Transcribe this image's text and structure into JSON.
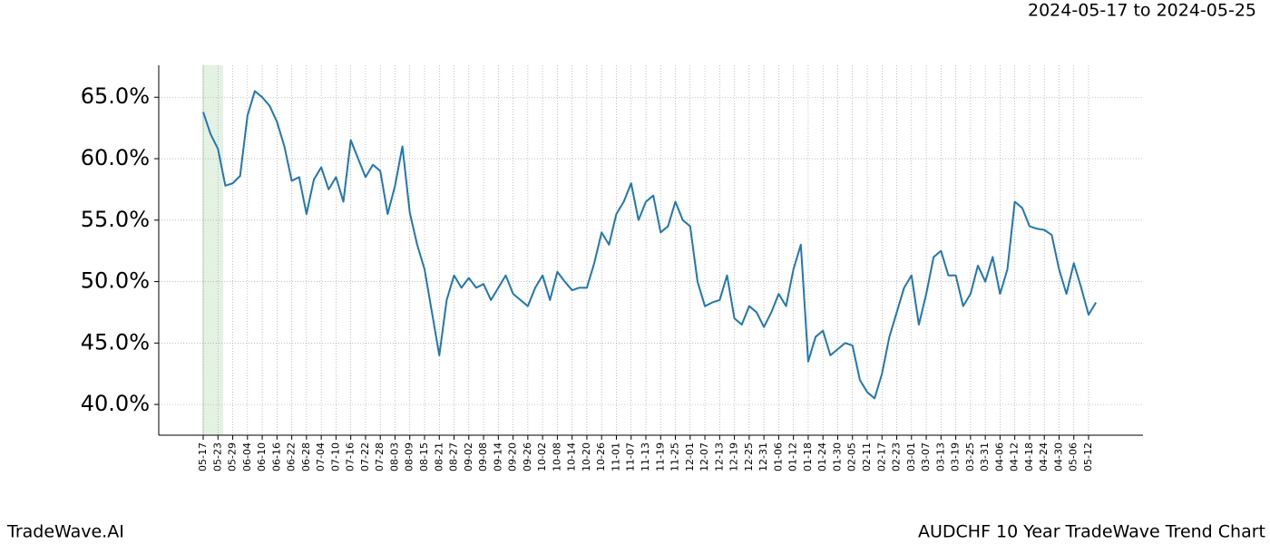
{
  "header": {
    "date_range": "2024-05-17 to 2024-05-25"
  },
  "footer": {
    "brand": "TradeWave.AI",
    "caption": "AUDCHF 10 Year TradeWave Trend Chart"
  },
  "chart_data": {
    "type": "line",
    "categories": [
      "05-17",
      null,
      "05-23",
      null,
      "05-29",
      null,
      "06-04",
      null,
      "06-10",
      null,
      "06-16",
      null,
      "06-22",
      null,
      "06-28",
      null,
      "07-04",
      null,
      "07-10",
      null,
      "07-16",
      null,
      "07-22",
      null,
      "07-28",
      null,
      "08-03",
      null,
      "08-09",
      null,
      "08-15",
      null,
      "08-21",
      null,
      "08-27",
      null,
      "09-02",
      null,
      "09-08",
      null,
      "09-14",
      null,
      "09-20",
      null,
      "09-26",
      null,
      "10-02",
      null,
      "10-08",
      null,
      "10-14",
      null,
      "10-20",
      null,
      "10-26",
      null,
      "11-01",
      null,
      "11-07",
      null,
      "11-13",
      null,
      "11-19",
      null,
      "11-25",
      null,
      "12-01",
      null,
      "12-07",
      null,
      "12-13",
      null,
      "12-19",
      null,
      "12-25",
      null,
      "12-31",
      null,
      "01-06",
      null,
      "01-12",
      null,
      "01-18",
      null,
      "01-24",
      null,
      "01-30",
      null,
      "02-05",
      null,
      "02-11",
      null,
      "02-17",
      null,
      "02-23",
      null,
      "03-01",
      null,
      "03-07",
      null,
      "03-13",
      null,
      "03-19",
      null,
      "03-25",
      null,
      "03-31",
      null,
      "04-06",
      null,
      "04-12",
      null,
      "04-18",
      null,
      "04-24",
      null,
      "04-30",
      null,
      "05-06",
      null,
      "05-12",
      null
    ],
    "series": [
      {
        "color": "#1f77b4",
        "values": [
          63.8,
          62,
          60.8,
          57.8,
          58,
          58.6,
          63.5,
          65.5,
          65,
          64.3,
          63,
          61,
          58.2,
          58.5,
          55.5,
          58.3,
          59.3,
          57.5,
          58.5,
          56.5,
          61.5,
          60,
          58.5,
          59.5,
          59,
          55.5,
          57.8,
          61,
          55.6,
          53,
          51,
          47.5,
          44,
          48.5,
          50.5,
          49.5,
          50.3,
          49.5,
          49.8,
          48.5,
          49.5,
          50.5,
          49,
          48.5,
          48,
          49.5,
          50.5,
          48.5,
          50.8,
          50,
          49.3,
          49.5,
          49.5,
          51.5,
          54,
          53,
          55.5,
          56.5,
          58,
          55,
          56.5,
          57,
          54,
          54.5,
          56.5,
          55,
          54.5,
          50,
          48,
          48.3,
          48.5,
          50.5,
          47,
          46.5,
          48,
          47.5,
          46.3,
          47.5,
          49,
          48,
          51,
          53,
          43.5,
          45.5,
          46,
          44,
          44.5,
          45,
          44.8,
          42,
          41,
          40.5,
          42.5,
          45.5,
          47.5,
          49.5,
          50.5,
          46.5,
          49,
          52,
          52.5,
          50.5,
          50.5,
          48,
          49,
          51.3,
          50,
          52,
          49,
          51,
          56.5,
          56,
          54.5,
          54.3,
          54.2,
          53.8,
          51,
          49,
          51.5,
          49.5,
          47.3,
          48.3
        ]
      }
    ],
    "ylim": [
      37.5,
      67.6
    ],
    "yticks": [
      {
        "value": 40,
        "label": "40.0%"
      },
      {
        "value": 45,
        "label": "45.0%"
      },
      {
        "value": 50,
        "label": "50.0%"
      },
      {
        "value": 55,
        "label": "55.0%"
      },
      {
        "value": 60,
        "label": "60.0%"
      },
      {
        "value": 65,
        "label": "65.0%"
      }
    ],
    "grid": true
  }
}
